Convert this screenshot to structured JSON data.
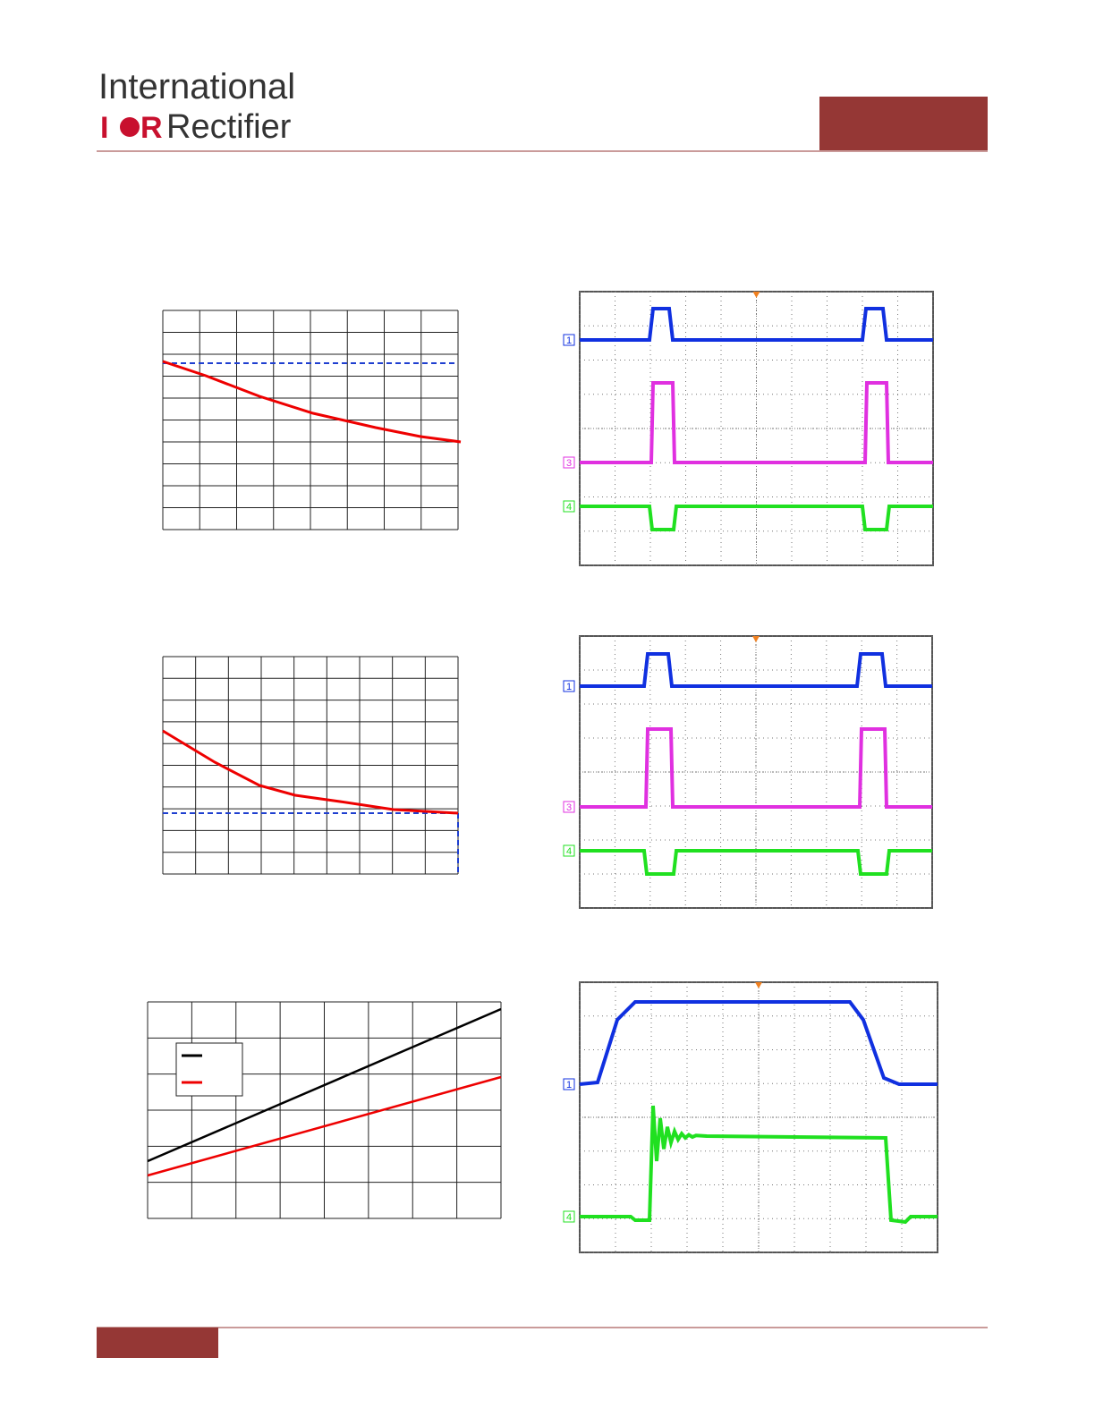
{
  "header": {
    "company_line1": "International",
    "logo_mark_left": "I",
    "logo_mark_right": "R",
    "company_line2": "Rectifier"
  },
  "scopes": [
    {
      "channels": [
        "1",
        "3",
        "4"
      ]
    },
    {
      "channels": [
        "1",
        "3",
        "4"
      ]
    },
    {
      "channels": [
        "1",
        "4"
      ]
    }
  ]
}
